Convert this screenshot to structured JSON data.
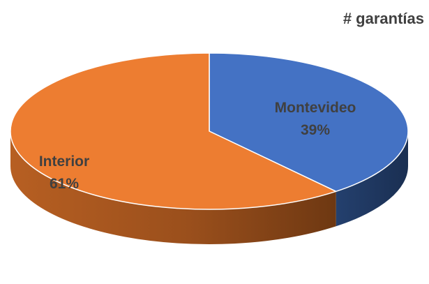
{
  "chart_data": {
    "type": "pie",
    "title": "# garantías",
    "style": "3d",
    "slices": [
      {
        "label": "Montevideo",
        "percent_label": "39%",
        "value": 39,
        "color": "#4472c4"
      },
      {
        "label": "Interior",
        "percent_label": "61%",
        "value": 61,
        "color": "#ed7d31"
      }
    ]
  }
}
